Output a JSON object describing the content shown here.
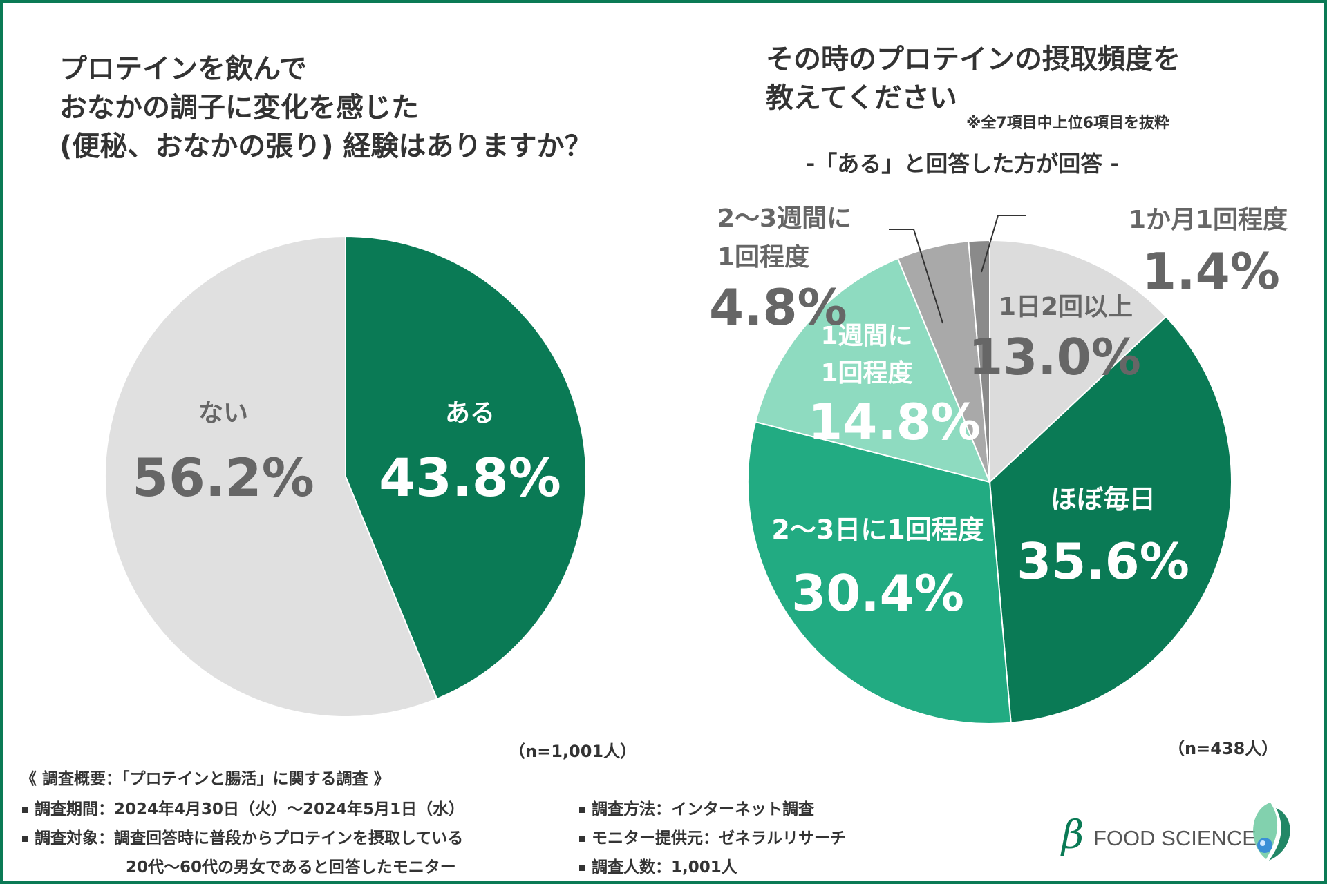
{
  "left": {
    "title_lines": [
      "プロテインを飲んで",
      "おなかの調子に変化を感じた",
      "(便秘、おなかの張り) 経験はありますか？"
    ],
    "n_label": "（n=1,001人）"
  },
  "right": {
    "title_lines": [
      "その時のプロテインの摂取頻度を",
      "教えてください"
    ],
    "note": "※全7項目中上位6項目を抜粋",
    "subheading": "-「ある」と回答した方が回答 -",
    "n_label": "（n=438人）"
  },
  "chart_data": [
    {
      "type": "pie",
      "title": "プロテインを飲んでおなかの調子に変化を感じた(便秘、おなかの張り) 経験はありますか？",
      "categories": [
        "ある",
        "ない"
      ],
      "values": [
        43.8,
        56.2
      ],
      "value_labels": [
        "43.8%",
        "56.2%"
      ],
      "colors": [
        "#0a7a55",
        "#e0e0e0"
      ],
      "label_colors": [
        "#ffffff",
        "#666666"
      ],
      "start": "12 o'clock, clockwise"
    },
    {
      "type": "pie",
      "title": "その時のプロテインの摂取頻度を教えてください",
      "categories": [
        "1日2回以上",
        "ほぼ毎日",
        "2〜3日に1回程度",
        "1週間に1回程度",
        "2〜3週間に1回程度",
        "1か月1回程度"
      ],
      "category_display": [
        [
          "1日2回以上"
        ],
        [
          "ほぼ毎日"
        ],
        [
          "2〜3日に1回程度"
        ],
        [
          "1週間に",
          "1回程度"
        ],
        [
          "2〜3週間に",
          "1回程度"
        ],
        [
          "1か月1回程度"
        ]
      ],
      "values": [
        13.0,
        35.6,
        30.4,
        14.8,
        4.8,
        1.4
      ],
      "value_labels": [
        "13.0%",
        "35.6%",
        "30.4%",
        "14.8%",
        "4.8%",
        "1.4%"
      ],
      "colors": [
        "#dcdcdc",
        "#0a7a55",
        "#22ab82",
        "#8edbc0",
        "#a9a9a9",
        "#8a8a8a"
      ],
      "label_colors": [
        "#666666",
        "#ffffff",
        "#ffffff",
        "#ffffff",
        "#666666",
        "#666666"
      ],
      "start": "12 o'clock, clockwise"
    }
  ],
  "survey": {
    "heading": "《 調査概要：「プロテインと腸活」に関する調査 》",
    "period": "調査期間：2024年4月30日（火）〜2024年5月1日（水）",
    "target_1": "調査対象：調査回答時に普段からプロテインを摂取している",
    "target_2": "20代〜60代の男女であると回答したモニター",
    "method": "調査方法：インターネット調査",
    "monitor": "モニター提供元：ゼネラルリサーチ",
    "count": "調査人数：1,001人"
  },
  "logo": {
    "beta": "β",
    "text": "FOOD SCIENCE"
  },
  "colors": {
    "brand_green": "#0a7a55",
    "text_dark": "#333333"
  }
}
